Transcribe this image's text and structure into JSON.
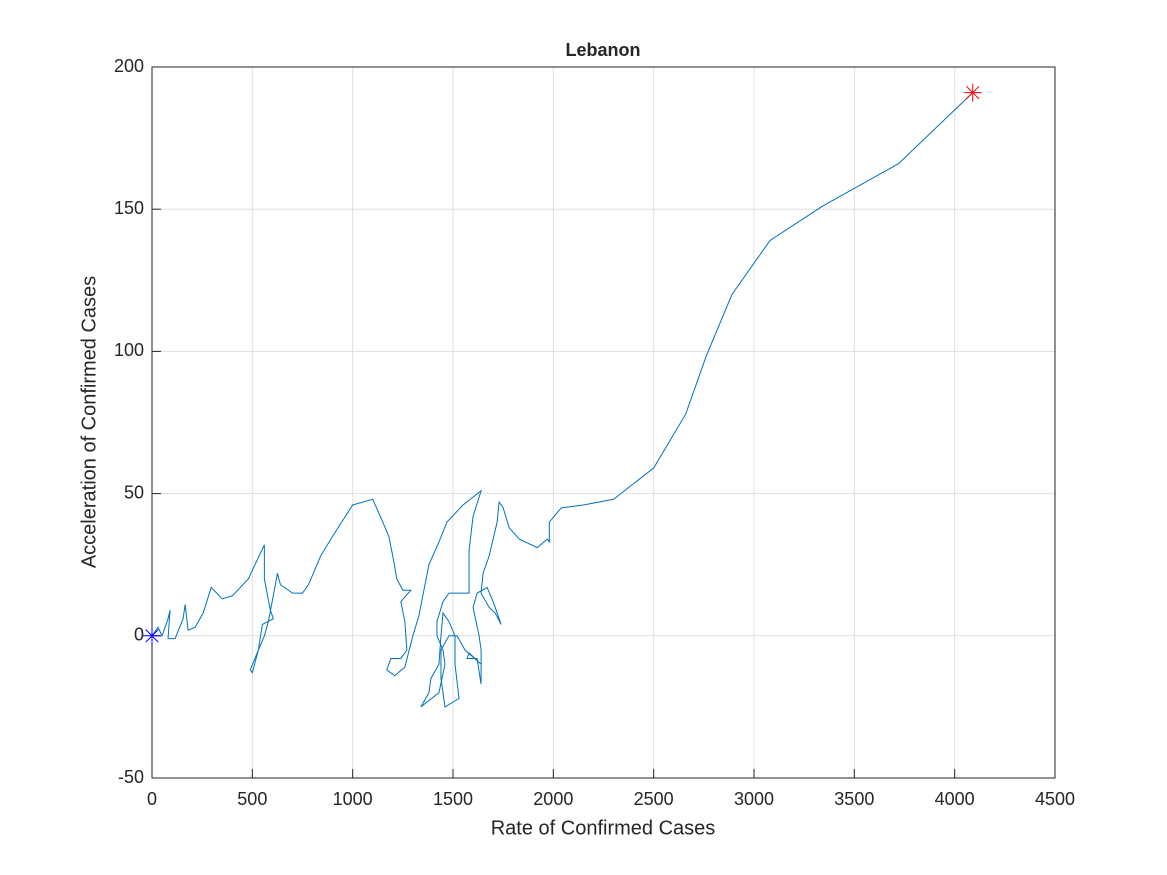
{
  "chart_data": {
    "type": "line",
    "title": "Lebanon",
    "x_label": "Rate of Confirmed Cases",
    "y_label": "Acceleration of Confirmed Cases",
    "xlim": [
      0,
      4500
    ],
    "ylim": [
      -50,
      200
    ],
    "xticks": [
      0,
      500,
      1000,
      1500,
      2000,
      2500,
      3000,
      3500,
      4000,
      4500
    ],
    "yticks": [
      -50,
      0,
      50,
      100,
      150,
      200
    ],
    "grid": true,
    "start_color": "#0000ff",
    "end_color": "#ff0000",
    "series": [
      {
        "color": "#0072bd",
        "x": [
          0,
          30,
          50,
          80,
          90,
          80,
          115,
          155,
          165,
          180,
          215,
          255,
          295,
          350,
          400,
          480,
          560,
          560,
          590,
          605,
          550,
          530,
          500,
          490,
          530,
          560,
          580,
          620,
          625,
          640,
          700,
          750,
          780,
          840,
          900,
          1000,
          1100,
          1150,
          1180,
          1200,
          1220,
          1250,
          1290,
          1240,
          1260,
          1270,
          1240,
          1190,
          1170,
          1210,
          1260,
          1300,
          1330,
          1380,
          1430,
          1470,
          1550,
          1640,
          1600,
          1580,
          1580,
          1480,
          1450,
          1420,
          1420,
          1450,
          1460,
          1430,
          1340,
          1380,
          1390,
          1430,
          1440,
          1450,
          1480,
          1510,
          1510,
          1530,
          1460,
          1440,
          1440,
          1480,
          1520,
          1560,
          1640,
          1640,
          1620,
          1570,
          1580,
          1640,
          1640,
          1630,
          1600,
          1620,
          1670,
          1700,
          1720,
          1740,
          1710,
          1680,
          1640,
          1650,
          1680,
          1720,
          1730,
          1750,
          1780,
          1830,
          1920,
          1970,
          1980,
          1980,
          2040,
          2150,
          2300,
          2500,
          2660,
          2760,
          2890,
          3080,
          3340,
          3720,
          4090
        ],
        "values": [
          0,
          3,
          0,
          6,
          9,
          -1,
          -1,
          6,
          11,
          2,
          3,
          8,
          17,
          13,
          14,
          20,
          32,
          20,
          9,
          6,
          4,
          -5,
          -13,
          -12,
          -5,
          0,
          5,
          20,
          22,
          18,
          15,
          15,
          18,
          28,
          35,
          46,
          48,
          40,
          35,
          28,
          20,
          16,
          16,
          12,
          5,
          -5,
          -8,
          -8,
          -12,
          -14,
          -11,
          0,
          7,
          25,
          33,
          40,
          46,
          51,
          42,
          30,
          15,
          15,
          12,
          5,
          0,
          -5,
          -10,
          -20,
          -25,
          -20,
          -15,
          -10,
          0,
          8,
          5,
          0,
          -10,
          -22,
          -25,
          -15,
          -5,
          0,
          0,
          -5,
          -10,
          -17,
          -8,
          -8,
          -6,
          -10,
          -5,
          0,
          10,
          15,
          17,
          12,
          8,
          4,
          8,
          10,
          15,
          22,
          28,
          40,
          47,
          45,
          38,
          34,
          31,
          34,
          33,
          40,
          45,
          46,
          48,
          59,
          78,
          98,
          120,
          139,
          151,
          166,
          191
        ]
      }
    ]
  }
}
